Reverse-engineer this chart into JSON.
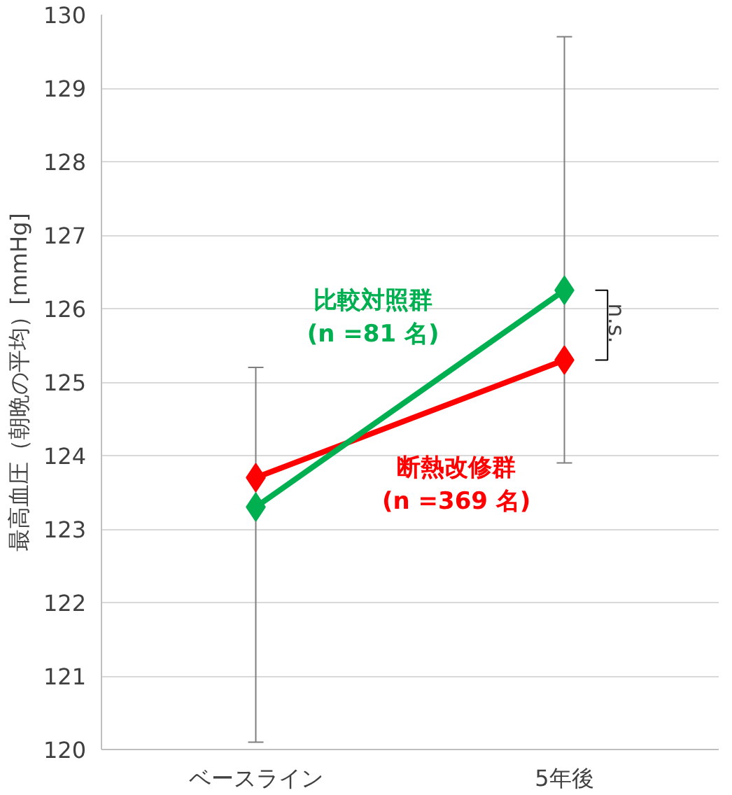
{
  "chart_data": {
    "type": "line",
    "ylabel": "最高血圧（朝晩の平均）[mmHg]",
    "categories": [
      "ベースライン",
      "5年後"
    ],
    "series": [
      {
        "name": "断熱改修群\n(n =369 名)",
        "color": "#ff0000",
        "values": [
          123.7,
          125.3
        ]
      },
      {
        "name": "比較対照群\n(n =81 名)",
        "color": "#00b050",
        "values": [
          123.3,
          126.25
        ],
        "errors": [
          [
            120.1,
            125.2
          ],
          [
            123.9,
            129.7
          ]
        ]
      }
    ],
    "ylim": [
      120,
      130
    ],
    "yticks": [
      120,
      121,
      122,
      123,
      124,
      125,
      126,
      127,
      128,
      129,
      130
    ],
    "grid": "y",
    "marker": "diamond",
    "annotations": [
      {
        "text": "n.s.",
        "x": "5年後",
        "y": 125.8
      }
    ]
  }
}
